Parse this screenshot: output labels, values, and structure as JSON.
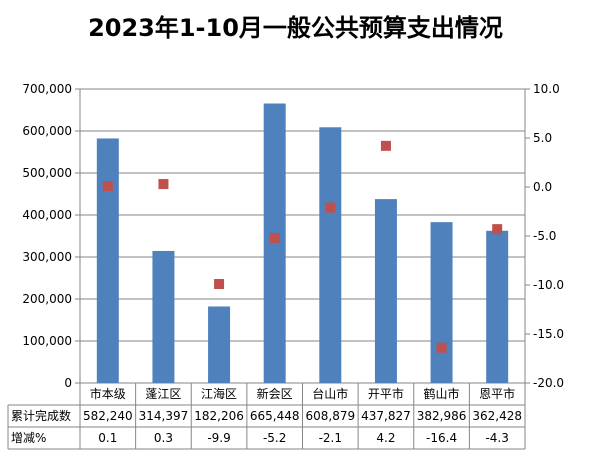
{
  "title": "2023年1-10月一般公共预算支出情况",
  "chart_data": {
    "type": "bar",
    "title": "2023年1-10月一般公共预算支出情况",
    "categories": [
      "市本级",
      "蓬江区",
      "江海区",
      "新会区",
      "台山市",
      "开平市",
      "鹤山市",
      "恩平市"
    ],
    "series": [
      {
        "name": "累计完成数",
        "type": "bar",
        "axis": "left",
        "values": [
          582240,
          314397,
          182206,
          665448,
          608879,
          437827,
          382986,
          362428
        ],
        "labels": [
          "582,240",
          "314,397",
          "182,206",
          "665,448",
          "608,879",
          "437,827",
          "382,986",
          "362,428"
        ],
        "color": "#4f81bd"
      },
      {
        "name": "增减%",
        "type": "scatter",
        "axis": "right",
        "values": [
          0.1,
          0.3,
          -9.9,
          -5.2,
          -2.1,
          4.2,
          -16.4,
          -4.3
        ],
        "labels": [
          "0.1",
          "0.3",
          "-9.9",
          "-5.2",
          "-2.1",
          "4.2",
          "-16.4",
          "-4.3"
        ],
        "color": "#c0504d"
      }
    ],
    "y_left": {
      "min": 0,
      "max": 700000,
      "ticks": [
        "0",
        "100,000",
        "200,000",
        "300,000",
        "400,000",
        "500,000",
        "600,000",
        "700,000"
      ]
    },
    "y_right": {
      "min": -20,
      "max": 10,
      "ticks": [
        "-20.0",
        "-15.0",
        "-10.0",
        "-5.0",
        "0.0",
        "5.0",
        "10.0"
      ]
    },
    "grid": true,
    "data_table": true
  }
}
